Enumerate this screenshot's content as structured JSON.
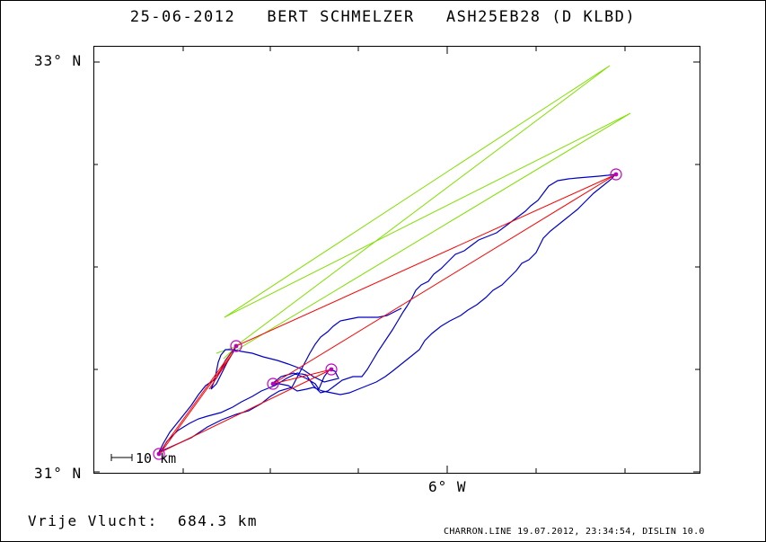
{
  "header": {
    "date": "25-06-2012",
    "pilot": "BERT SCHMELZER",
    "glider": "ASH25EB28 (D KLBD)"
  },
  "axes": {
    "lat_top": "33° N",
    "lat_bottom": "31° N",
    "lon_mid": "6° W"
  },
  "scale": {
    "label": "10 km"
  },
  "distance": {
    "label": "Vrije Vlucht:",
    "value": "684.3 km"
  },
  "footer": {
    "text": "CHARRON.LINE 19.07.2012, 23:34:54, DISLIN 10.0"
  },
  "colors": {
    "frame": "#000000",
    "track": "#0000c8",
    "legs": "#ff0000",
    "turnpoint": "#c000c0",
    "wind_vectors": "#80e000"
  },
  "map": {
    "turnpoints": [
      "start-finish",
      "tp1",
      "tp2",
      "tp3",
      "tp4"
    ]
  }
}
